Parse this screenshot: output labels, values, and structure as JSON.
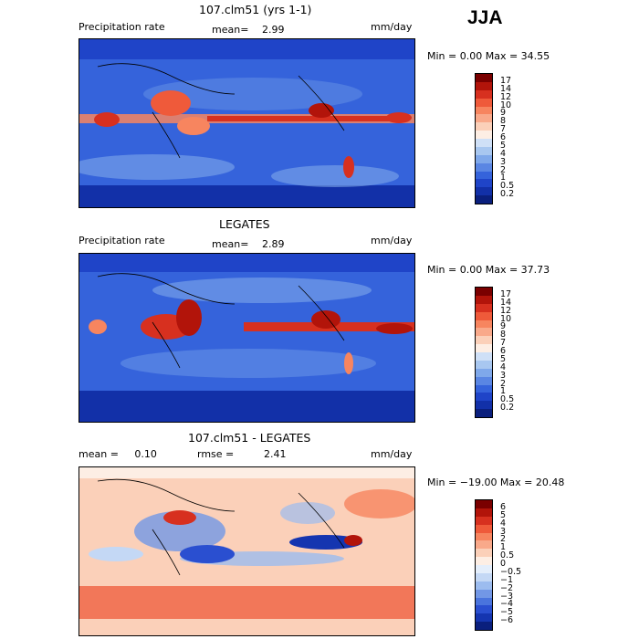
{
  "season": "JJA",
  "panels": [
    {
      "title": "107.clm51 (yrs 1-1)",
      "left_label": "Precipitation rate",
      "center_label": "mean=",
      "center_value": "2.99",
      "units": "mm/day",
      "min_max_text": "Min =     0.00 Max =   34.55",
      "colorbar": {
        "labels": [
          "17",
          "14",
          "12",
          "10",
          "9",
          "8",
          "7",
          "6",
          "5",
          "4",
          "3",
          "2",
          "1",
          "0.5",
          "0.2"
        ],
        "colors": [
          "#7a0000",
          "#b2140a",
          "#d7301f",
          "#ef5a3a",
          "#f7855f",
          "#f9a98a",
          "#fbd0b9",
          "#fdeee4",
          "#cfe0f7",
          "#a8c7f0",
          "#7fa8ea",
          "#5a86e3",
          "#3563db",
          "#1f44c8",
          "#1230a8",
          "#0a1f7d"
        ]
      }
    },
    {
      "title": "LEGATES",
      "left_label": "Precipitation rate",
      "center_label": "mean=",
      "center_value": "2.89",
      "units": "mm/day",
      "min_max_text": "Min =     0.00 Max =   37.73",
      "colorbar": {
        "labels": [
          "17",
          "14",
          "12",
          "10",
          "9",
          "8",
          "7",
          "6",
          "5",
          "4",
          "3",
          "2",
          "1",
          "0.5",
          "0.2"
        ],
        "colors": [
          "#7a0000",
          "#b2140a",
          "#d7301f",
          "#ef5a3a",
          "#f7855f",
          "#f9a98a",
          "#fbd0b9",
          "#fdeee4",
          "#cfe0f7",
          "#a8c7f0",
          "#7fa8ea",
          "#5a86e3",
          "#3563db",
          "#1f44c8",
          "#1230a8",
          "#0a1f7d"
        ]
      }
    },
    {
      "title": "107.clm51 - LEGATES",
      "left_label": "mean =     0.10",
      "center_label": "rmse =",
      "center_value": "2.41",
      "units": "mm/day",
      "min_max_text": "Min = −19.00 Max =   20.48",
      "colorbar": {
        "labels": [
          "6",
          "5",
          "4",
          "3",
          "2",
          "1",
          "0.5",
          "0",
          "−0.5",
          "−1",
          "−2",
          "−3",
          "−4",
          "−5",
          "−6"
        ],
        "colors": [
          "#7a0000",
          "#b2140a",
          "#d7301f",
          "#ef5a3a",
          "#f7855f",
          "#f9a98a",
          "#fbd0b9",
          "#fdeee4",
          "#e4eefb",
          "#c4d8f5",
          "#9cbcef",
          "#7297e6",
          "#4a74dd",
          "#2a4fd0",
          "#1535b0",
          "#0a1f7d"
        ]
      }
    }
  ]
}
